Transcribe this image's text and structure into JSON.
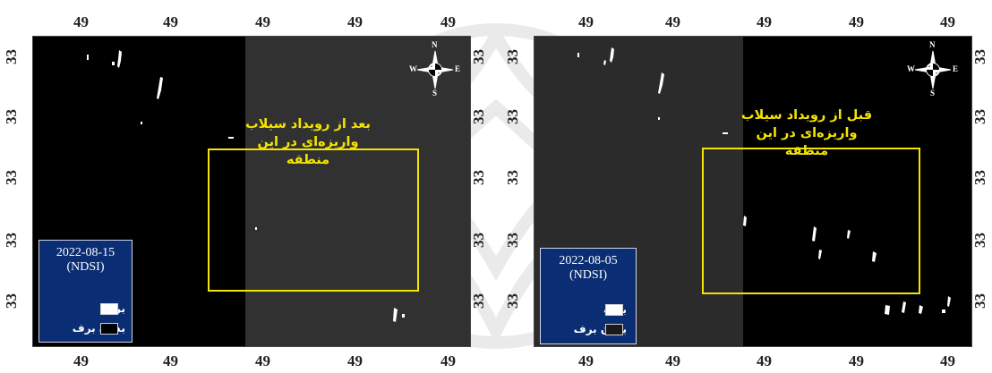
{
  "panels": {
    "left": {
      "top_ticks": [
        "49",
        "49",
        "49",
        "49",
        "49"
      ],
      "bottom_ticks": [
        "49",
        "49",
        "49",
        "49",
        "49"
      ],
      "left_ticks": [
        "33",
        "33",
        "33",
        "33",
        "33"
      ],
      "right_ticks": [
        "33",
        "33",
        "33",
        "33",
        "33"
      ],
      "annotation_line1": "بعد از رویداد سیلاب",
      "annotation_line2": "واریزه‌ای در این منطقه",
      "legend": {
        "date": "2022-08-15",
        "index": "(NDSI)",
        "items": [
          {
            "label": "برف",
            "color": "#ffffff"
          },
          {
            "label": "بدون برف",
            "color": "#000000"
          }
        ]
      },
      "compass": {
        "n": "N",
        "s": "S",
        "e": "E",
        "w": "W"
      }
    },
    "right": {
      "top_ticks": [
        "49",
        "49",
        "49",
        "49",
        "49"
      ],
      "bottom_ticks": [
        "49",
        "49",
        "49",
        "49",
        "49"
      ],
      "left_ticks": [
        "33",
        "33",
        "33",
        "33",
        "33"
      ],
      "right_ticks": [
        "33",
        "33",
        "33",
        "33",
        "33"
      ],
      "annotation_line1": "قبل از رویداد سیلاب",
      "annotation_line2": "واریزه‌ای در این منطقه",
      "legend": {
        "date": "2022-08-05",
        "index": "(NDSI)",
        "items": [
          {
            "label": "برف",
            "color": "#ffffff"
          },
          {
            "label": "بدون برف",
            "color": "#1a1a1a"
          }
        ]
      },
      "compass": {
        "n": "N",
        "s": "S",
        "e": "E",
        "w": "W"
      }
    }
  },
  "colors": {
    "aoi_outline": "#f4e500",
    "annotation_text": "#f4e500",
    "legend_background": "#0b2d73",
    "map_background": "#000000",
    "map_overlay_gray": "#3a3a3a",
    "snow": "#ffffff"
  }
}
